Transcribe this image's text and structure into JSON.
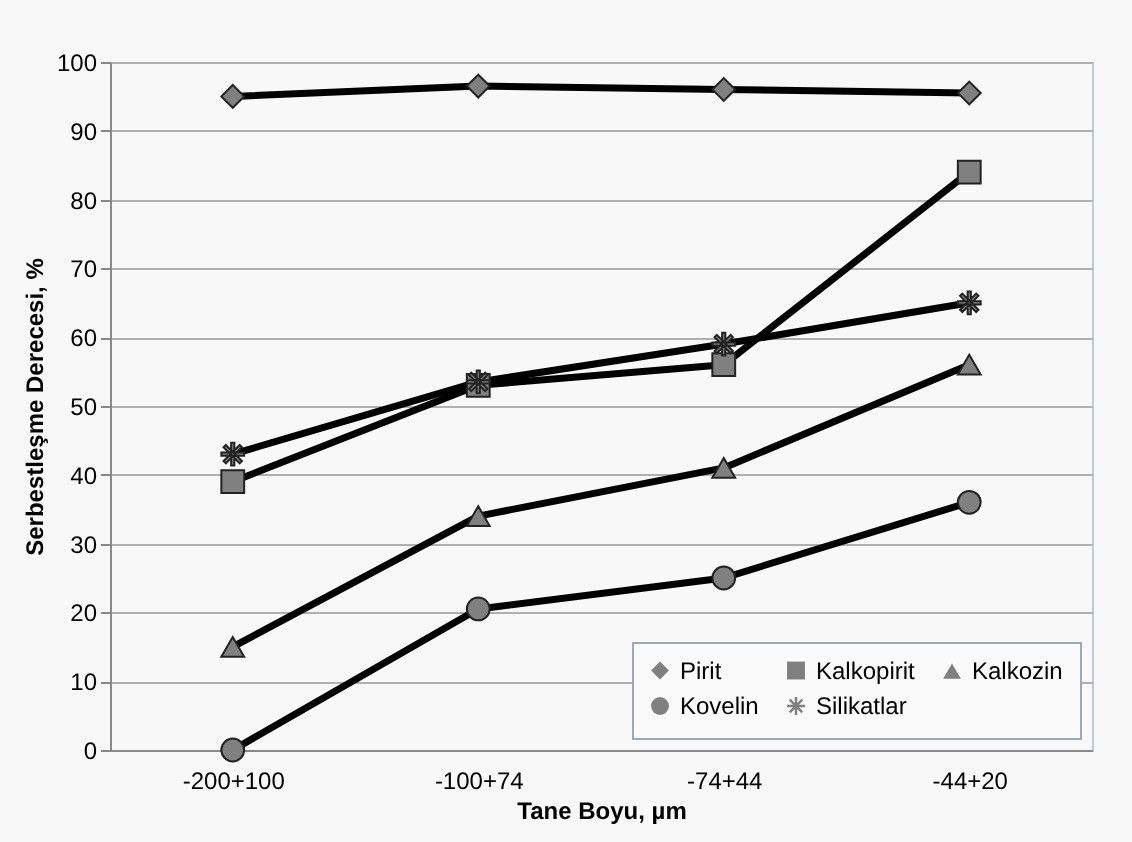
{
  "chart_data": {
    "type": "line",
    "xlabel": "Tane Boyu, µm",
    "ylabel": "Serbestleşme Derecesi, %",
    "categories": [
      "-200+100",
      "-100+74",
      "-74+44",
      "-44+20"
    ],
    "series": [
      {
        "name": "Pirit",
        "color": "#000000",
        "marker": "diamond",
        "values": [
          95,
          96.5,
          96,
          95.5
        ]
      },
      {
        "name": "Kalkopirit",
        "color": "#000000",
        "marker": "square",
        "values": [
          39,
          53,
          56,
          84
        ]
      },
      {
        "name": "Kalkozin",
        "color": "#000000",
        "marker": "triangle",
        "values": [
          15,
          34,
          41,
          56
        ]
      },
      {
        "name": "Kovelin",
        "color": "#000000",
        "marker": "circle",
        "values": [
          0,
          20.5,
          25,
          36
        ]
      },
      {
        "name": "Silikatlar",
        "color": "#000000",
        "marker": "cross",
        "values": [
          43,
          53.5,
          59,
          65
        ]
      }
    ],
    "ylim": [
      0,
      100
    ],
    "yticks": [
      0,
      10,
      20,
      30,
      40,
      50,
      60,
      70,
      80,
      90,
      100
    ],
    "grid": "y",
    "legend": "bottom right",
    "line_style": "solid"
  }
}
